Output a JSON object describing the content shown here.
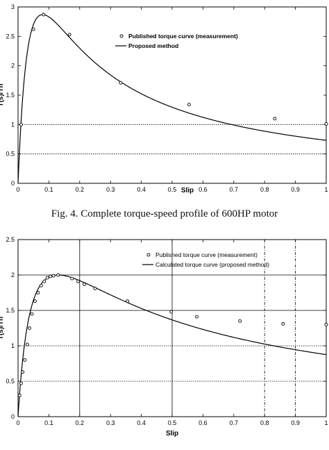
{
  "caption": "Fig. 4.   Complete torque-speed profile of 600HP motor",
  "chart_data": [
    {
      "type": "line",
      "xlabel": "Slip",
      "ylabel": "T(s)/Tn",
      "xlim": [
        0,
        1
      ],
      "ylim": [
        0,
        3
      ],
      "xticks": [
        "0",
        "0.1",
        "0.2",
        "0.3",
        "0.4",
        "0.5",
        "0.6",
        "0.7",
        "0.8",
        "0.9",
        "1"
      ],
      "yticks": [
        "0",
        "0.5",
        "1",
        "1.5",
        "2",
        "2.5",
        "3"
      ],
      "legend": [
        "Published torque curve (measurement)",
        "Proposed method"
      ],
      "legend_position": "top-right",
      "series": [
        {
          "name": "Published torque curve (measurement)",
          "style": "markers",
          "points": [
            [
              0.01,
              1.0
            ],
            [
              0.05,
              2.62
            ],
            [
              0.083,
              2.87
            ],
            [
              0.167,
              2.53
            ],
            [
              0.333,
              1.71
            ],
            [
              0.555,
              1.34
            ],
            [
              0.833,
              1.1
            ],
            [
              1.0,
              1.01
            ]
          ]
        },
        {
          "name": "Proposed method",
          "style": "line",
          "model": {
            "smax": 0.08,
            "tmax": 2.87,
            "b": 0.81
          }
        }
      ],
      "reference_lines": {
        "dotted_y": [
          1,
          0.5
        ]
      }
    },
    {
      "type": "line",
      "xlabel": "Slip",
      "ylabel": "T(s)/Tn",
      "xlim": [
        0,
        1
      ],
      "ylim": [
        0,
        2.5
      ],
      "xticks": [
        "0",
        "0.1",
        "0.2",
        "0.3",
        "0.4",
        "0.5",
        "0.6",
        "0.7",
        "0.8",
        "0.9",
        "1"
      ],
      "yticks": [
        "0",
        "0.5",
        "1",
        "1.5",
        "2",
        "2.5"
      ],
      "legend": [
        "Published torque curve (measurement)",
        "Calculated torque curve (proposed method)"
      ],
      "legend_position": "top-right",
      "series": [
        {
          "name": "Published torque curve (measurement)",
          "style": "markers",
          "points": [
            [
              0.005,
              0.3
            ],
            [
              0.01,
              0.47
            ],
            [
              0.015,
              0.63
            ],
            [
              0.022,
              0.8
            ],
            [
              0.03,
              1.02
            ],
            [
              0.037,
              1.25
            ],
            [
              0.045,
              1.45
            ],
            [
              0.055,
              1.63
            ],
            [
              0.065,
              1.75
            ],
            [
              0.075,
              1.85
            ],
            [
              0.085,
              1.91
            ],
            [
              0.095,
              1.96
            ],
            [
              0.105,
              1.98
            ],
            [
              0.115,
              1.99
            ],
            [
              0.13,
              2.0
            ],
            [
              0.175,
              1.95
            ],
            [
              0.195,
              1.91
            ],
            [
              0.215,
              1.87
            ],
            [
              0.25,
              1.81
            ],
            [
              0.355,
              1.63
            ],
            [
              0.497,
              1.48
            ],
            [
              0.58,
              1.41
            ],
            [
              0.72,
              1.35
            ],
            [
              0.86,
              1.31
            ],
            [
              1.0,
              1.3
            ]
          ]
        },
        {
          "name": "Calculated torque curve (proposed method)",
          "style": "line",
          "model": {
            "smax": 0.13,
            "tmax": 2.0,
            "b": 1.27
          }
        }
      ],
      "reference_lines": {
        "solid_y": [
          1.5,
          2
        ],
        "dotted_y": [
          1,
          0.5
        ],
        "solid_x": [
          0.2,
          0.5
        ],
        "dashdot_x": [
          0.8,
          0.9
        ]
      }
    }
  ]
}
